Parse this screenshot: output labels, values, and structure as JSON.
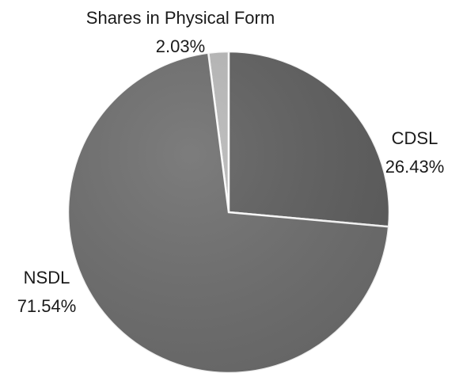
{
  "chart_data": {
    "type": "pie",
    "title": "",
    "slices": [
      {
        "label": "Shares in Physical Form",
        "value": 2.03,
        "value_text": "2.03%",
        "color": "#b8b8b8"
      },
      {
        "label": "CDSL",
        "value": 26.43,
        "value_text": "26.43%",
        "color": "#5f5f5f"
      },
      {
        "label": "NSDL",
        "value": 71.54,
        "value_text": "71.54%",
        "color": "#6e6e6e"
      }
    ],
    "start_angle_deg": -7.3,
    "direction": "clockwise",
    "legend": "none"
  }
}
